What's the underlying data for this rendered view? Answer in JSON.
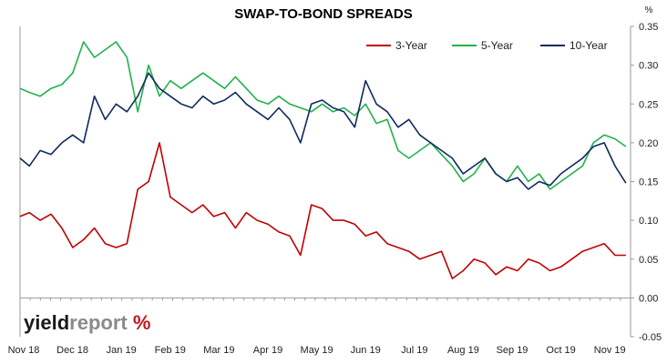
{
  "chart_data": {
    "type": "line",
    "title": "SWAP-TO-BOND SPREADS",
    "y_unit": "%",
    "ylim": [
      -0.05,
      0.35
    ],
    "yticks": [
      "0.35",
      "0.30",
      "0.25",
      "0.20",
      "0.15",
      "0.10",
      "0.05",
      "0.00",
      "-0.05"
    ],
    "ytick_values": [
      0.35,
      0.3,
      0.25,
      0.2,
      0.15,
      0.1,
      0.05,
      0.0,
      -0.05
    ],
    "x_tick_labels": [
      "Nov 18",
      "Dec 18",
      "Jan 19",
      "Feb 19",
      "Mar 19",
      "Apr 19",
      "May 19",
      "Jun 19",
      "Jul 19",
      "Aug 19",
      "Sep 19",
      "Oct 19",
      "Nov 19"
    ],
    "x_range": [
      "2018-11-01",
      "2019-11-30"
    ],
    "grid": false,
    "legend_position": "top-right",
    "colors": {
      "three_year": "#c00000",
      "five_year": "#22b24c",
      "ten_year": "#0f2a5e"
    },
    "series": [
      {
        "name": "3-Year",
        "color": "#c00000",
        "x": [
          "2018-11-01",
          "2018-11-07",
          "2018-11-14",
          "2018-11-21",
          "2018-11-28",
          "2018-12-05",
          "2018-12-12",
          "2018-12-19",
          "2018-12-26",
          "2019-01-02",
          "2019-01-09",
          "2019-01-16",
          "2019-01-23",
          "2019-01-30",
          "2019-02-06",
          "2019-02-13",
          "2019-02-20",
          "2019-02-27",
          "2019-03-06",
          "2019-03-13",
          "2019-03-20",
          "2019-03-27",
          "2019-04-03",
          "2019-04-10",
          "2019-04-17",
          "2019-04-24",
          "2019-05-01",
          "2019-05-08",
          "2019-05-15",
          "2019-05-22",
          "2019-05-29",
          "2019-06-05",
          "2019-06-12",
          "2019-06-19",
          "2019-06-26",
          "2019-07-03",
          "2019-07-10",
          "2019-07-17",
          "2019-07-24",
          "2019-07-31",
          "2019-08-07",
          "2019-08-14",
          "2019-08-21",
          "2019-08-28",
          "2019-09-04",
          "2019-09-11",
          "2019-09-18",
          "2019-09-25",
          "2019-10-02",
          "2019-10-09",
          "2019-10-16",
          "2019-10-23",
          "2019-10-30",
          "2019-11-06",
          "2019-11-13",
          "2019-11-20",
          "2019-11-27"
        ],
        "values": [
          0.105,
          0.11,
          0.1,
          0.108,
          0.09,
          0.065,
          0.075,
          0.09,
          0.07,
          0.065,
          0.07,
          0.14,
          0.15,
          0.2,
          0.13,
          0.12,
          0.11,
          0.12,
          0.105,
          0.11,
          0.09,
          0.11,
          0.1,
          0.095,
          0.085,
          0.08,
          0.055,
          0.12,
          0.115,
          0.1,
          0.1,
          0.095,
          0.08,
          0.085,
          0.07,
          0.065,
          0.06,
          0.05,
          0.055,
          0.06,
          0.025,
          0.035,
          0.05,
          0.045,
          0.03,
          0.04,
          0.035,
          0.05,
          0.045,
          0.035,
          0.04,
          0.05,
          0.06,
          0.065,
          0.07,
          0.055,
          0.055
        ]
      },
      {
        "name": "5-Year",
        "color": "#22b24c",
        "x": [
          "2018-11-01",
          "2018-11-07",
          "2018-11-14",
          "2018-11-21",
          "2018-11-28",
          "2018-12-05",
          "2018-12-12",
          "2018-12-19",
          "2018-12-26",
          "2019-01-02",
          "2019-01-09",
          "2019-01-16",
          "2019-01-23",
          "2019-01-30",
          "2019-02-06",
          "2019-02-13",
          "2019-02-20",
          "2019-02-27",
          "2019-03-06",
          "2019-03-13",
          "2019-03-20",
          "2019-03-27",
          "2019-04-03",
          "2019-04-10",
          "2019-04-17",
          "2019-04-24",
          "2019-05-01",
          "2019-05-08",
          "2019-05-15",
          "2019-05-22",
          "2019-05-29",
          "2019-06-05",
          "2019-06-12",
          "2019-06-19",
          "2019-06-26",
          "2019-07-03",
          "2019-07-10",
          "2019-07-17",
          "2019-07-24",
          "2019-07-31",
          "2019-08-07",
          "2019-08-14",
          "2019-08-21",
          "2019-08-28",
          "2019-09-04",
          "2019-09-11",
          "2019-09-18",
          "2019-09-25",
          "2019-10-02",
          "2019-10-09",
          "2019-10-16",
          "2019-10-23",
          "2019-10-30",
          "2019-11-06",
          "2019-11-13",
          "2019-11-20",
          "2019-11-27"
        ],
        "values": [
          0.27,
          0.265,
          0.26,
          0.27,
          0.275,
          0.29,
          0.33,
          0.31,
          0.32,
          0.33,
          0.31,
          0.24,
          0.3,
          0.26,
          0.28,
          0.27,
          0.28,
          0.29,
          0.28,
          0.27,
          0.285,
          0.27,
          0.255,
          0.25,
          0.26,
          0.25,
          0.245,
          0.24,
          0.25,
          0.24,
          0.245,
          0.235,
          0.25,
          0.225,
          0.23,
          0.19,
          0.18,
          0.19,
          0.2,
          0.185,
          0.17,
          0.15,
          0.16,
          0.18,
          0.16,
          0.15,
          0.17,
          0.15,
          0.16,
          0.14,
          0.15,
          0.16,
          0.17,
          0.2,
          0.21,
          0.205,
          0.195
        ]
      },
      {
        "name": "10-Year",
        "color": "#0f2a5e",
        "x": [
          "2018-11-01",
          "2018-11-07",
          "2018-11-14",
          "2018-11-21",
          "2018-11-28",
          "2018-12-05",
          "2018-12-12",
          "2018-12-19",
          "2018-12-26",
          "2019-01-02",
          "2019-01-09",
          "2019-01-16",
          "2019-01-23",
          "2019-01-30",
          "2019-02-06",
          "2019-02-13",
          "2019-02-20",
          "2019-02-27",
          "2019-03-06",
          "2019-03-13",
          "2019-03-20",
          "2019-03-27",
          "2019-04-03",
          "2019-04-10",
          "2019-04-17",
          "2019-04-24",
          "2019-05-01",
          "2019-05-08",
          "2019-05-15",
          "2019-05-22",
          "2019-05-29",
          "2019-06-05",
          "2019-06-12",
          "2019-06-19",
          "2019-06-26",
          "2019-07-03",
          "2019-07-10",
          "2019-07-17",
          "2019-07-24",
          "2019-07-31",
          "2019-08-07",
          "2019-08-14",
          "2019-08-21",
          "2019-08-28",
          "2019-09-04",
          "2019-09-11",
          "2019-09-18",
          "2019-09-25",
          "2019-10-02",
          "2019-10-09",
          "2019-10-16",
          "2019-10-23",
          "2019-10-30",
          "2019-11-06",
          "2019-11-13",
          "2019-11-20",
          "2019-11-27"
        ],
        "values": [
          0.18,
          0.17,
          0.19,
          0.185,
          0.2,
          0.21,
          0.2,
          0.26,
          0.23,
          0.25,
          0.24,
          0.26,
          0.29,
          0.27,
          0.26,
          0.25,
          0.245,
          0.26,
          0.25,
          0.255,
          0.265,
          0.25,
          0.24,
          0.23,
          0.245,
          0.23,
          0.2,
          0.25,
          0.255,
          0.245,
          0.24,
          0.22,
          0.28,
          0.25,
          0.24,
          0.22,
          0.23,
          0.21,
          0.2,
          0.19,
          0.18,
          0.16,
          0.17,
          0.18,
          0.16,
          0.15,
          0.155,
          0.14,
          0.15,
          0.145,
          0.16,
          0.17,
          0.18,
          0.195,
          0.2,
          0.17,
          0.148
        ]
      }
    ]
  },
  "brand": {
    "part1": "yield",
    "part2": "report",
    "part3": " %"
  }
}
